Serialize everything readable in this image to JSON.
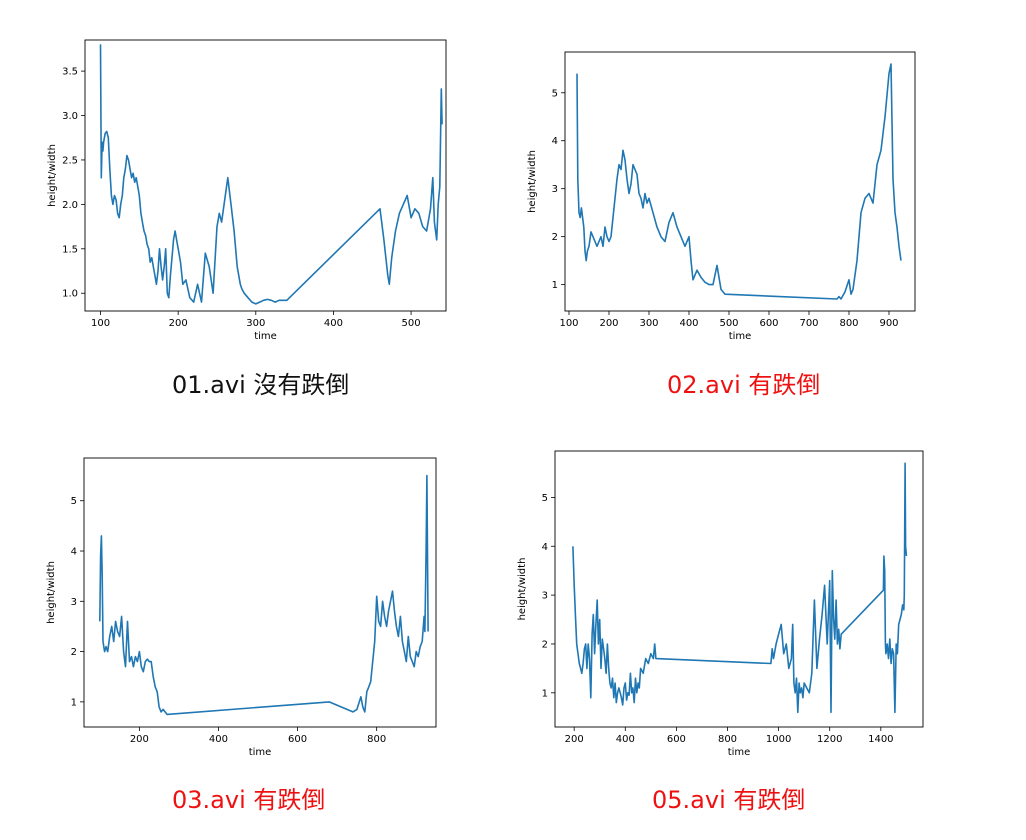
{
  "charts": [
    {
      "caption": "01.avi  沒有跌倒",
      "caption_color": "black",
      "chart_data": {
        "type": "line",
        "xlabel": "time",
        "ylabel": "height/width",
        "xlim": [
          80,
          545
        ],
        "ylim": [
          0.8,
          3.85
        ],
        "xticks": [
          100,
          200,
          300,
          400,
          500
        ],
        "yticks": [
          1.0,
          1.5,
          2.0,
          2.5,
          3.0,
          3.5
        ],
        "ytick_format": 1,
        "series": [
          {
            "color": "#1f77b4",
            "x": [
              100,
              101,
              102,
              103,
              104,
              106,
              108,
              110,
              112,
              114,
              116,
              118,
              120,
              122,
              124,
              126,
              128,
              130,
              132,
              134,
              136,
              138,
              140,
              142,
              144,
              146,
              148,
              150,
              152,
              154,
              156,
              158,
              160,
              162,
              164,
              166,
              168,
              170,
              172,
              174,
              176,
              178,
              180,
              182,
              184,
              186,
              188,
              190,
              192,
              194,
              196,
              198,
              200,
              203,
              206,
              210,
              215,
              220,
              225,
              230,
              235,
              240,
              245,
              250,
              253,
              256,
              260,
              264,
              268,
              272,
              276,
              280,
              282,
              285,
              290,
              295,
              300,
              305,
              310,
              315,
              320,
              325,
              330,
              340,
              460,
              465,
              470,
              472,
              475,
              480,
              485,
              490,
              495,
              500,
              505,
              510,
              515,
              520,
              525,
              528,
              530,
              533,
              535,
              537,
              539,
              540
            ],
            "y": [
              3.8,
              2.3,
              2.7,
              2.6,
              2.7,
              2.8,
              2.82,
              2.75,
              2.4,
              2.1,
              2.0,
              2.1,
              2.05,
              1.9,
              1.85,
              2.0,
              2.1,
              2.3,
              2.4,
              2.55,
              2.5,
              2.4,
              2.3,
              2.35,
              2.25,
              2.3,
              2.2,
              2.1,
              1.9,
              1.8,
              1.7,
              1.65,
              1.55,
              1.5,
              1.35,
              1.4,
              1.3,
              1.2,
              1.1,
              1.25,
              1.5,
              1.3,
              1.15,
              1.3,
              1.5,
              1.0,
              0.95,
              1.2,
              1.4,
              1.6,
              1.7,
              1.6,
              1.5,
              1.35,
              1.1,
              1.15,
              0.95,
              0.9,
              1.1,
              0.9,
              1.45,
              1.3,
              1.0,
              1.75,
              1.9,
              1.8,
              2.05,
              2.3,
              2.0,
              1.7,
              1.3,
              1.1,
              1.05,
              1.0,
              0.95,
              0.9,
              0.88,
              0.9,
              0.92,
              0.93,
              0.92,
              0.9,
              0.92,
              0.92,
              1.95,
              1.6,
              1.2,
              1.1,
              1.4,
              1.7,
              1.9,
              2.0,
              2.1,
              1.85,
              1.95,
              1.9,
              1.75,
              1.7,
              1.95,
              2.3,
              1.8,
              1.6,
              2.0,
              2.2,
              3.3,
              2.9
            ]
          }
        ]
      }
    },
    {
      "caption": "02.avi 有跌倒",
      "caption_color": "red",
      "chart_data": {
        "type": "line",
        "xlabel": "time",
        "ylabel": "height/width",
        "xlim": [
          90,
          965
        ],
        "ylim": [
          0.45,
          5.85
        ],
        "xticks": [
          100,
          200,
          300,
          400,
          500,
          600,
          700,
          800,
          900
        ],
        "yticks": [
          1,
          2,
          3,
          4,
          5
        ],
        "ytick_format": 0,
        "series": [
          {
            "color": "#1f77b4",
            "x": [
              120,
              122,
              125,
              128,
              131,
              134,
              137,
              140,
              143,
              146,
              150,
              155,
              160,
              165,
              170,
              175,
              180,
              185,
              190,
              195,
              200,
              205,
              210,
              215,
              220,
              225,
              230,
              235,
              240,
              245,
              250,
              255,
              260,
              265,
              270,
              275,
              280,
              285,
              290,
              295,
              300,
              310,
              320,
              330,
              340,
              350,
              360,
              370,
              380,
              390,
              400,
              405,
              410,
              420,
              430,
              440,
              450,
              460,
              470,
              480,
              490,
              770,
              775,
              780,
              790,
              800,
              805,
              810,
              820,
              830,
              840,
              850,
              860,
              870,
              880,
              890,
              900,
              905,
              910,
              915,
              920,
              925,
              930
            ],
            "y": [
              5.4,
              3.2,
              2.5,
              2.4,
              2.6,
              2.4,
              2.2,
              1.7,
              1.5,
              1.7,
              1.8,
              2.1,
              2.0,
              1.9,
              1.8,
              1.9,
              2.0,
              1.8,
              2.2,
              2.0,
              1.9,
              2.0,
              2.4,
              2.8,
              3.2,
              3.5,
              3.4,
              3.8,
              3.6,
              3.2,
              2.9,
              3.1,
              3.5,
              3.4,
              3.3,
              2.9,
              2.8,
              2.6,
              2.9,
              2.7,
              2.8,
              2.5,
              2.2,
              2.0,
              1.9,
              2.3,
              2.5,
              2.2,
              2.0,
              1.8,
              2.0,
              1.5,
              1.1,
              1.3,
              1.15,
              1.05,
              1.0,
              1.0,
              1.4,
              0.9,
              0.8,
              0.7,
              0.75,
              0.7,
              0.85,
              1.1,
              0.8,
              0.9,
              1.5,
              2.5,
              2.8,
              2.9,
              2.7,
              3.5,
              3.8,
              4.5,
              5.4,
              5.6,
              3.2,
              2.5,
              2.2,
              1.8,
              1.5
            ]
          }
        ]
      }
    },
    {
      "caption": "03.avi  有跌倒",
      "caption_color": "red",
      "chart_data": {
        "type": "line",
        "xlabel": "time",
        "ylabel": "height/width",
        "xlim": [
          60,
          950
        ],
        "ylim": [
          0.5,
          5.85
        ],
        "xticks": [
          200,
          400,
          600,
          800
        ],
        "yticks": [
          1,
          2,
          3,
          4,
          5
        ],
        "ytick_format": 0,
        "series": [
          {
            "color": "#1f77b4",
            "x": [
              100,
              102,
              104,
              106,
              108,
              112,
              116,
              120,
              125,
              130,
              135,
              140,
              145,
              150,
              155,
              160,
              165,
              170,
              175,
              180,
              185,
              190,
              195,
              200,
              205,
              210,
              215,
              220,
              225,
              230,
              235,
              240,
              245,
              250,
              255,
              260,
              265,
              270,
              680,
              740,
              750,
              760,
              765,
              770,
              775,
              780,
              785,
              790,
              795,
              800,
              805,
              810,
              815,
              820,
              825,
              830,
              835,
              840,
              845,
              850,
              855,
              860,
              865,
              870,
              875,
              880,
              885,
              890,
              895,
              900,
              905,
              910,
              915,
              920,
              922,
              925,
              927,
              930
            ],
            "y": [
              2.6,
              3.9,
              4.3,
              3.5,
              2.2,
              2.0,
              2.1,
              2.0,
              2.3,
              2.5,
              2.2,
              2.6,
              2.4,
              2.3,
              2.7,
              2.0,
              1.7,
              2.6,
              1.8,
              1.9,
              1.7,
              1.9,
              1.8,
              2.0,
              1.7,
              1.6,
              1.8,
              1.85,
              1.8,
              1.8,
              1.5,
              1.3,
              1.2,
              0.9,
              0.8,
              0.85,
              0.8,
              0.75,
              1.0,
              0.8,
              0.85,
              1.1,
              0.9,
              0.8,
              1.2,
              1.3,
              1.4,
              1.8,
              2.2,
              3.1,
              2.6,
              2.5,
              3.0,
              2.7,
              2.5,
              2.8,
              3.0,
              3.2,
              2.8,
              2.5,
              2.3,
              2.7,
              2.2,
              2.0,
              1.8,
              2.3,
              1.9,
              1.8,
              1.7,
              2.0,
              1.9,
              2.1,
              2.2,
              2.7,
              2.4,
              4.0,
              5.5,
              2.4
            ]
          }
        ]
      }
    },
    {
      "caption": "05.avi 有跌倒",
      "caption_color": "red",
      "chart_data": {
        "type": "line",
        "xlabel": "time",
        "ylabel": "height/width",
        "xlim": [
          125,
          1565
        ],
        "ylim": [
          0.3,
          5.95
        ],
        "xticks": [
          200,
          400,
          600,
          800,
          1000,
          1200,
          1400
        ],
        "yticks": [
          1,
          2,
          3,
          4,
          5
        ],
        "ytick_format": 0,
        "series": [
          {
            "color": "#1f77b4",
            "x": [
              195,
              200,
              205,
              210,
              215,
              220,
              225,
              230,
              235,
              240,
              245,
              250,
              255,
              260,
              265,
              270,
              275,
              280,
              285,
              290,
              295,
              300,
              305,
              310,
              315,
              320,
              325,
              330,
              335,
              340,
              345,
              350,
              355,
              360,
              365,
              370,
              375,
              380,
              385,
              390,
              395,
              400,
              405,
              410,
              415,
              420,
              425,
              430,
              435,
              440,
              445,
              450,
              455,
              460,
              470,
              480,
              490,
              500,
              510,
              515,
              520,
              970,
              975,
              980,
              990,
              1000,
              1010,
              1020,
              1030,
              1040,
              1050,
              1055,
              1060,
              1065,
              1070,
              1075,
              1080,
              1085,
              1090,
              1095,
              1100,
              1110,
              1120,
              1130,
              1140,
              1150,
              1160,
              1170,
              1180,
              1190,
              1200,
              1205,
              1210,
              1215,
              1220,
              1225,
              1230,
              1235,
              1240,
              1245,
              1410,
              1412,
              1415,
              1418,
              1420,
              1425,
              1430,
              1435,
              1440,
              1445,
              1450,
              1455,
              1460,
              1465,
              1470,
              1475,
              1480,
              1485,
              1490,
              1492,
              1495,
              1497,
              1500
            ],
            "y": [
              4.0,
              3.2,
              2.6,
              2.0,
              1.8,
              1.6,
              1.5,
              1.4,
              1.6,
              1.9,
              2.0,
              1.5,
              2.0,
              1.7,
              0.9,
              2.2,
              2.6,
              1.8,
              2.4,
              2.9,
              2.0,
              2.5,
              1.5,
              2.1,
              1.9,
              1.7,
              1.4,
              2.0,
              1.5,
              1.2,
              1.1,
              1.3,
              0.9,
              1.2,
              0.8,
              1.0,
              1.1,
              1.0,
              0.9,
              0.75,
              1.1,
              1.2,
              0.85,
              1.0,
              0.95,
              1.4,
              1.0,
              1.1,
              0.8,
              1.3,
              1.0,
              1.2,
              1.1,
              1.5,
              1.4,
              1.7,
              1.6,
              1.8,
              1.7,
              2.0,
              1.7,
              1.6,
              1.9,
              1.7,
              2.0,
              2.2,
              2.4,
              1.8,
              2.0,
              1.5,
              1.7,
              2.4,
              1.2,
              1.0,
              1.3,
              0.6,
              1.2,
              1.0,
              1.1,
              0.9,
              1.2,
              1.1,
              1.0,
              1.4,
              2.9,
              1.5,
              2.1,
              2.6,
              3.2,
              2.0,
              3.3,
              0.6,
              3.5,
              2.5,
              2.1,
              2.9,
              2.0,
              2.3,
              1.9,
              2.2,
              3.1,
              3.8,
              3.5,
              2.0,
              1.8,
              2.0,
              1.7,
              2.1,
              1.6,
              1.9,
              1.8,
              0.6,
              2.0,
              1.8,
              2.4,
              2.5,
              2.6,
              2.8,
              2.7,
              3.0,
              5.7,
              4.0,
              3.8
            ]
          }
        ]
      }
    }
  ]
}
